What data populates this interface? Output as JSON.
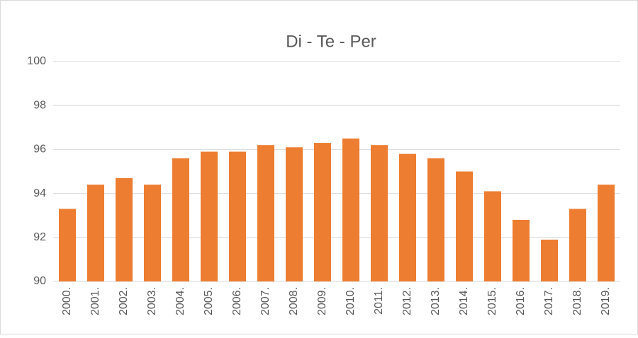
{
  "chart_data": {
    "type": "bar",
    "title": "Di - Te - Per",
    "categories": [
      "2000.",
      "2001.",
      "2002.",
      "2003.",
      "2004.",
      "2005.",
      "2006.",
      "2007.",
      "2008.",
      "2009.",
      "2010.",
      "2011.",
      "2012.",
      "2013.",
      "2014.",
      "2015.",
      "2016.",
      "2017.",
      "2018.",
      "2019."
    ],
    "values": [
      93.3,
      94.4,
      94.7,
      94.4,
      95.6,
      95.9,
      95.9,
      96.2,
      96.1,
      96.3,
      96.5,
      96.2,
      95.8,
      95.6,
      95.0,
      94.1,
      92.8,
      91.9,
      93.3,
      94.4
    ],
    "color": "#ed7d31",
    "ylim": [
      90,
      100
    ],
    "yticks": [
      90,
      92,
      94,
      96,
      98,
      100
    ],
    "grid": true
  }
}
